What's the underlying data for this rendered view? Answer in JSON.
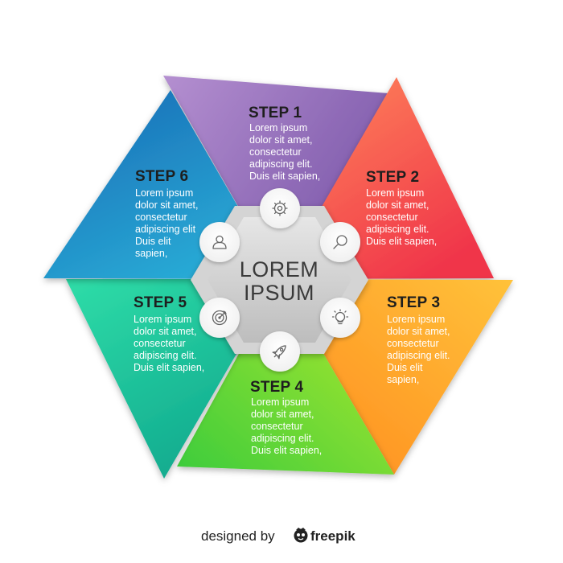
{
  "center": {
    "line1": "LOREM",
    "line2": "IPSUM"
  },
  "steps": [
    {
      "title": "STEP 1",
      "color_light": "#b48fd0",
      "color_dark": "#7c58aa",
      "icon": "gear-icon",
      "lines": [
        "Lorem ipsum",
        "dolor sit amet,",
        "consectetur",
        "adipiscing elit.",
        "Duis elit sapien,"
      ]
    },
    {
      "title": "STEP 2",
      "color_light": "#ff8a5a",
      "color_dark": "#f0344a",
      "icon": "magnifier-icon",
      "lines": [
        "Lorem ipsum",
        "dolor sit amet,",
        "consectetur",
        "adipiscing elit.",
        "Duis elit sapien,"
      ]
    },
    {
      "title": "STEP 3",
      "color_light": "#ffc23a",
      "color_dark": "#ff8a1e",
      "icon": "lightbulb-icon",
      "lines": [
        "Lorem ipsum",
        "dolor sit amet,",
        "consectetur",
        "adipiscing elit.",
        "Duis elit",
        "sapien,"
      ]
    },
    {
      "title": "STEP 4",
      "color_light": "#b6ea2c",
      "color_dark": "#3ccc3c",
      "icon": "rocket-icon",
      "lines": [
        "Lorem ipsum",
        "dolor sit amet,",
        "consectetur",
        "adipiscing elit.",
        "Duis elit sapien,"
      ]
    },
    {
      "title": "STEP 5",
      "color_light": "#2fdda8",
      "color_dark": "#10a98e",
      "icon": "target-icon",
      "lines": [
        "Lorem ipsum",
        "dolor sit amet,",
        "consectetur",
        "adipiscing elit.",
        "Duis elit sapien,"
      ]
    },
    {
      "title": "STEP 6",
      "color_light": "#2aa8dc",
      "color_dark": "#1a6fb8",
      "icon": "user-icon",
      "lines": [
        "Lorem ipsum",
        "dolor sit amet,",
        "consectetur",
        "adipiscing elit",
        "Duis elit",
        "sapien,"
      ]
    }
  ],
  "footer": {
    "prefix": "designed by",
    "brand": "freepik",
    "logo_icon": "freepik-logo-icon"
  }
}
